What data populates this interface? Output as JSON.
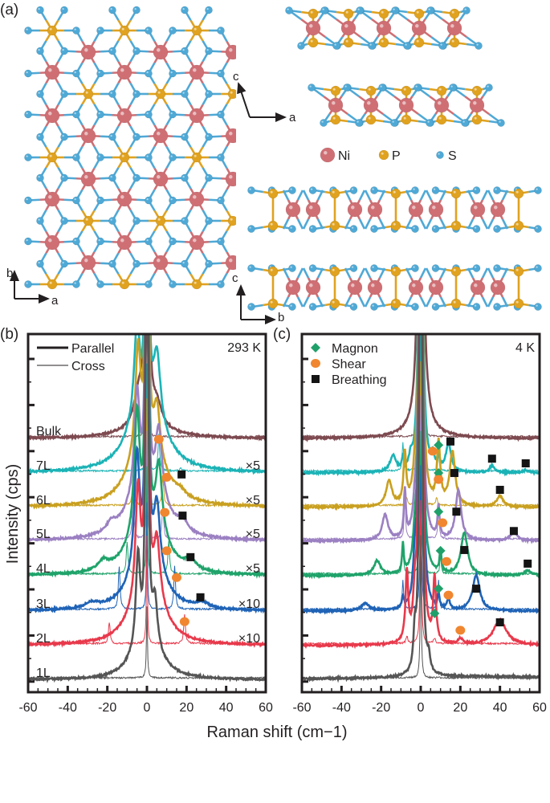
{
  "panel_labels": {
    "a": "(a)",
    "b": "(b)",
    "c": "(c)"
  },
  "structure": {
    "legend": [
      {
        "label": "Ni",
        "color": "#cf6f74"
      },
      {
        "label": "P",
        "color": "#e0a21f"
      },
      {
        "label": "S",
        "color": "#4fa9d6"
      }
    ],
    "axes_top": {
      "v": "b",
      "h": "a"
    },
    "axes_side_a": {
      "v": "c",
      "h": "a"
    },
    "axes_side_b": {
      "v": "c",
      "h": "b"
    }
  },
  "chart_data": [
    {
      "id": "b",
      "type": "line",
      "title": "293 K",
      "xlabel": "Raman shift (cm−1)",
      "ylabel": "Intensity (cps)",
      "xlim": [
        -60,
        60
      ],
      "ylim": [
        0,
        10
      ],
      "xticks": [
        "-60",
        "-40",
        "-20",
        "0",
        "20",
        "40",
        "60"
      ],
      "legend": [
        {
          "label": "Parallel",
          "style": "thick"
        },
        {
          "label": "Cross",
          "style": "thin"
        }
      ],
      "legend_position": "top-left",
      "traces": [
        {
          "label": "Bulk",
          "color": "#7d4a50",
          "offset": 7.08,
          "scale": "",
          "parallel": [
            [
              0,
              30,
              0.5
            ],
            [
              -4,
              0.9,
              3
            ],
            [
              5,
              0.6,
              3
            ],
            [
              0,
              0.3,
              14
            ]
          ],
          "cross": [
            [
              0,
              4,
              0.3
            ]
          ]
        },
        {
          "label": "7L",
          "color": "#1bb3b6",
          "offset": 6.12,
          "scale": "×5",
          "parallel": [
            [
              0,
              30,
              0.45
            ],
            [
              -5,
              2.7,
              1.8
            ],
            [
              -5,
              0.9,
              9
            ],
            [
              5,
              2.0,
              2.2
            ],
            [
              5,
              0.8,
              9
            ]
          ],
          "cross": [
            [
              0,
              3,
              0.3
            ],
            [
              6,
              1.0,
              0.5
            ],
            [
              17,
              0.08,
              0.6
            ]
          ]
        },
        {
          "label": "6L",
          "color": "#c9a020",
          "offset": 5.16,
          "scale": "×5",
          "parallel": [
            [
              0,
              30,
              0.45
            ],
            [
              -4.5,
              3.0,
              1.6
            ],
            [
              -4.5,
              1.0,
              8
            ],
            [
              5,
              1.6,
              2
            ],
            [
              5,
              0.7,
              9
            ],
            [
              17,
              0.15,
              3
            ]
          ],
          "cross": [
            [
              0,
              3,
              0.3
            ],
            [
              -7,
              0.8,
              0.5
            ],
            [
              8,
              0.8,
              0.5
            ]
          ]
        },
        {
          "label": "5L",
          "color": "#9b80c2",
          "offset": 4.22,
          "scale": "×5",
          "parallel": [
            [
              0,
              30,
              0.45
            ],
            [
              -5,
              2.9,
              1.6
            ],
            [
              -5,
              0.9,
              8
            ],
            [
              6,
              2.0,
              2.0
            ],
            [
              6,
              0.7,
              8
            ],
            [
              -18,
              0.25,
              3
            ],
            [
              18,
              0.3,
              3
            ]
          ],
          "cross": [
            [
              0,
              3,
              0.3
            ],
            [
              -7,
              1.2,
              0.5
            ],
            [
              8,
              0.9,
              0.5
            ]
          ]
        },
        {
          "label": "4L",
          "color": "#1fa36a",
          "offset": 3.25,
          "scale": "×5",
          "parallel": [
            [
              0,
              30,
              0.45
            ],
            [
              -5,
              3.4,
              1.6
            ],
            [
              -5,
              0.8,
              8
            ],
            [
              6,
              2.0,
              2.0
            ],
            [
              6,
              0.7,
              8
            ],
            [
              -22,
              0.25,
              3
            ],
            [
              22,
              0.3,
              3
            ]
          ],
          "cross": [
            [
              0,
              3,
              0.3
            ],
            [
              -10,
              0.9,
              0.5
            ],
            [
              11,
              0.9,
              0.5
            ]
          ]
        },
        {
          "label": "3L",
          "color": "#1f63b6",
          "offset": 2.26,
          "scale": "×10",
          "parallel": [
            [
              0,
              30,
              0.45
            ],
            [
              -5,
              3.3,
              1.6
            ],
            [
              -5,
              0.7,
              8
            ],
            [
              5,
              2.0,
              2.0
            ],
            [
              5,
              0.6,
              8
            ],
            [
              -28,
              0.15,
              4
            ],
            [
              28,
              0.15,
              4
            ]
          ],
          "cross": [
            [
              0,
              3,
              0.3
            ],
            [
              -14,
              1.2,
              0.5
            ],
            [
              14,
              1.2,
              0.5
            ]
          ]
        },
        {
          "label": "2L",
          "color": "#e8394b",
          "offset": 1.3,
          "scale": "×10",
          "parallel": [
            [
              0,
              30,
              0.45
            ],
            [
              -4.5,
              3.2,
              1.5
            ],
            [
              -4.5,
              0.8,
              8
            ],
            [
              5,
              1.8,
              2.0
            ],
            [
              5,
              0.7,
              8
            ]
          ],
          "cross": [
            [
              0,
              3,
              0.3
            ],
            [
              -19,
              0.6,
              0.5
            ],
            [
              19,
              0.8,
              0.5
            ]
          ]
        },
        {
          "label": "1L",
          "color": "#555555",
          "offset": 0.34,
          "scale": "",
          "parallel": [
            [
              0,
              30,
              0.45
            ],
            [
              -4.5,
              2.6,
              1.3
            ],
            [
              -4.5,
              0.5,
              7
            ],
            [
              4,
              1.4,
              1.6
            ],
            [
              4,
              0.5,
              8
            ]
          ],
          "cross": [
            [
              0,
              2,
              0.3
            ]
          ]
        }
      ],
      "markers": [
        {
          "type": "shear",
          "x": 6,
          "y": 7.06
        },
        {
          "type": "shear",
          "x": 10,
          "y": 6.0
        },
        {
          "type": "breathing",
          "x": 17.5,
          "y": 6.08
        },
        {
          "type": "shear",
          "x": 9,
          "y": 5.02
        },
        {
          "type": "breathing",
          "x": 18,
          "y": 4.93
        },
        {
          "type": "shear",
          "x": 10,
          "y": 3.95
        },
        {
          "type": "breathing",
          "x": 22,
          "y": 3.77
        },
        {
          "type": "shear",
          "x": 15,
          "y": 3.2
        },
        {
          "type": "breathing",
          "x": 27,
          "y": 2.65
        },
        {
          "type": "shear",
          "x": 19,
          "y": 1.97
        }
      ]
    },
    {
      "id": "c",
      "type": "line",
      "title": "4 K",
      "xlabel": "Raman shift (cm−1)",
      "xlim": [
        -60,
        60
      ],
      "ylim": [
        0,
        10
      ],
      "xticks": [
        "-60",
        "-40",
        "-20",
        "0",
        "20",
        "40",
        "60"
      ],
      "legend": [
        {
          "label": "Magnon",
          "marker": "magnon"
        },
        {
          "label": "Shear",
          "marker": "shear"
        },
        {
          "label": "Breathing",
          "marker": "breathing"
        }
      ],
      "legend_position": "top-left",
      "traces": [
        {
          "label": "Bulk",
          "color": "#7d4a50",
          "offset": 7.08,
          "parallel": [
            [
              0,
              30,
              0.6
            ],
            [
              0,
              2.5,
              2.2
            ],
            [
              0,
              0.15,
              12
            ]
          ],
          "cross": [
            [
              0,
              4,
              0.4
            ]
          ]
        },
        {
          "label": "7L",
          "color": "#1bb3b6",
          "offset": 6.12,
          "parallel": [
            [
              0,
              30,
              0.6
            ],
            [
              -14,
              0.45,
              1.8
            ],
            [
              -9,
              0.35,
              0.5
            ],
            [
              -5,
              0.3,
              1
            ],
            [
              6,
              0.35,
              1
            ],
            [
              9,
              0.45,
              0.6
            ],
            [
              14,
              0.8,
              1.5
            ],
            [
              36,
              0.2,
              1.5
            ],
            [
              53,
              0.08,
              1.5
            ]
          ],
          "cross": [
            [
              0,
              4,
              0.4
            ],
            [
              -9,
              0.8,
              0.4
            ],
            [
              9,
              0.5,
              0.4
            ]
          ]
        },
        {
          "label": "6L",
          "color": "#c9a020",
          "offset": 5.16,
          "parallel": [
            [
              0,
              30,
              0.6
            ],
            [
              -16,
              0.7,
              1.8
            ],
            [
              -8,
              1.4,
              0.8
            ],
            [
              -3,
              0.6,
              1
            ],
            [
              9,
              1.7,
              1
            ],
            [
              16,
              1.5,
              1.7
            ],
            [
              40,
              0.3,
              2
            ]
          ],
          "cross": [
            [
              0,
              4,
              0.4
            ],
            [
              -7,
              0.2,
              0.5
            ],
            [
              8,
              0.2,
              0.5
            ]
          ]
        },
        {
          "label": "5L",
          "color": "#9b80c2",
          "offset": 4.22,
          "parallel": [
            [
              0,
              30,
              0.6
            ],
            [
              -18,
              0.7,
              1.8
            ],
            [
              -8,
              1.3,
              0.6
            ],
            [
              -3,
              0.6,
              1
            ],
            [
              9,
              0.9,
              0.6
            ],
            [
              19,
              1.4,
              1.7
            ],
            [
              47,
              0.25,
              2
            ]
          ],
          "cross": [
            [
              0,
              4,
              0.4
            ],
            [
              -8,
              1.2,
              0.4
            ],
            [
              9,
              0.9,
              0.4
            ]
          ]
        },
        {
          "label": "4L",
          "color": "#1fa36a",
          "offset": 3.25,
          "parallel": [
            [
              0,
              30,
              0.6
            ],
            [
              -22,
              0.4,
              2
            ],
            [
              -9,
              0.8,
              0.5
            ],
            [
              -3,
              0.7,
              1
            ],
            [
              10,
              0.6,
              0.6
            ],
            [
              22,
              1.2,
              2
            ],
            [
              54,
              0.15,
              2
            ]
          ],
          "cross": [
            [
              0,
              4,
              0.4
            ],
            [
              -9,
              0.8,
              0.4
            ],
            [
              10,
              0.5,
              0.4
            ]
          ]
        },
        {
          "label": "3L",
          "color": "#1f63b6",
          "offset": 2.26,
          "parallel": [
            [
              0,
              30,
              0.6
            ],
            [
              -28,
              0.2,
              2.5
            ],
            [
              -9,
              0.3,
              0.6
            ],
            [
              -3,
              1.0,
              1
            ],
            [
              9,
              0.4,
              0.6
            ],
            [
              14,
              0.3,
              0.8
            ],
            [
              28,
              1.0,
              2.2
            ]
          ],
          "cross": [
            [
              0,
              4,
              0.4
            ],
            [
              -9,
              0.8,
              0.4
            ],
            [
              9,
              0.8,
              0.4
            ]
          ]
        },
        {
          "label": "2L",
          "color": "#e8394b",
          "offset": 1.3,
          "parallel": [
            [
              0,
              30,
              0.6
            ],
            [
              -7,
              1.9,
              0.8
            ],
            [
              -3,
              1.0,
              1
            ],
            [
              7,
              1.8,
              0.8
            ],
            [
              20,
              0.15,
              1.5
            ],
            [
              40,
              0.7,
              4
            ]
          ],
          "cross": [
            [
              0,
              4,
              0.4
            ],
            [
              -7,
              0.2,
              0.5
            ],
            [
              7,
              0.15,
              0.5
            ]
          ]
        },
        {
          "label": "1L",
          "color": "#555555",
          "offset": 0.34,
          "parallel": [
            [
              0,
              30,
              0.5
            ],
            [
              -3,
              1.0,
              0.8
            ],
            [
              4,
              0.4,
              0.8
            ],
            [
              30,
              0.1,
              60
            ]
          ],
          "cross": [
            [
              0,
              4,
              0.3
            ]
          ]
        }
      ],
      "markers": [
        {
          "type": "magnon",
          "x": 9,
          "y": 6.9
        },
        {
          "type": "shear",
          "x": 6,
          "y": 6.73
        },
        {
          "type": "breathing",
          "x": 15,
          "y": 7.0
        },
        {
          "type": "breathing",
          "x": 36,
          "y": 6.52
        },
        {
          "type": "breathing",
          "x": 53,
          "y": 6.39
        },
        {
          "type": "magnon",
          "x": 9,
          "y": 6.12
        },
        {
          "type": "shear",
          "x": 9,
          "y": 5.94
        },
        {
          "type": "breathing",
          "x": 17,
          "y": 6.12
        },
        {
          "type": "breathing",
          "x": 40,
          "y": 5.65
        },
        {
          "type": "magnon",
          "x": 9,
          "y": 5.04
        },
        {
          "type": "shear",
          "x": 11,
          "y": 4.73
        },
        {
          "type": "breathing",
          "x": 18,
          "y": 5.04
        },
        {
          "type": "breathing",
          "x": 47,
          "y": 4.5
        },
        {
          "type": "magnon",
          "x": 10,
          "y": 3.95
        },
        {
          "type": "shear",
          "x": 13,
          "y": 3.65
        },
        {
          "type": "breathing",
          "x": 22,
          "y": 3.97
        },
        {
          "type": "breathing",
          "x": 54,
          "y": 3.59
        },
        {
          "type": "magnon",
          "x": 9,
          "y": 2.89
        },
        {
          "type": "shear",
          "x": 14,
          "y": 2.71
        },
        {
          "type": "breathing",
          "x": 28,
          "y": 2.89
        },
        {
          "type": "magnon",
          "x": 7,
          "y": 2.2
        },
        {
          "type": "shear",
          "x": 20,
          "y": 1.73
        },
        {
          "type": "breathing",
          "x": 40,
          "y": 1.95
        }
      ]
    }
  ],
  "marker_colors": {
    "magnon": "#1fa06a",
    "shear": "#f0862f",
    "breathing": "#141414"
  }
}
